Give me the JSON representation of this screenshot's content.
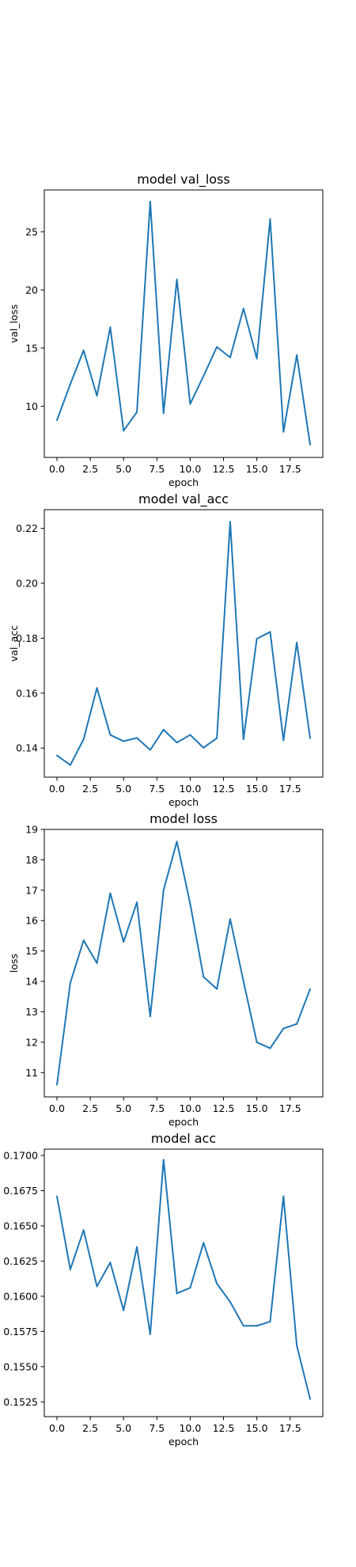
{
  "chart_data": [
    {
      "type": "line",
      "title": "model val_loss",
      "xlabel": "epoch",
      "ylabel": "val_loss",
      "xlim": [
        -0.95,
        19.95
      ],
      "ylim": [
        5.6,
        28.6
      ],
      "xticks": [
        0.0,
        2.5,
        5.0,
        7.5,
        10.0,
        12.5,
        15.0,
        17.5
      ],
      "xtick_labels": [
        "0.0",
        "2.5",
        "5.0",
        "7.5",
        "10.0",
        "12.5",
        "15.0",
        "17.5"
      ],
      "yticks": [
        10,
        15,
        20,
        25
      ],
      "ytick_labels": [
        "10",
        "15",
        "20",
        "25"
      ],
      "grid": false,
      "series": [
        {
          "color": "#1f77b4",
          "x": [
            0,
            1,
            2,
            3,
            4,
            5,
            6,
            7,
            8,
            9,
            10,
            11,
            12,
            13,
            14,
            15,
            16,
            17,
            18,
            19
          ],
          "y": [
            8.8,
            11.9,
            14.8,
            10.9,
            16.8,
            7.9,
            9.5,
            27.6,
            9.4,
            20.9,
            10.2,
            12.6,
            15.1,
            14.2,
            18.4,
            14.1,
            26.1,
            7.8,
            14.4,
            6.7
          ]
        }
      ]
    },
    {
      "type": "line",
      "title": "model val_acc",
      "xlabel": "epoch",
      "ylabel": "val_acc",
      "xlim": [
        -0.95,
        19.95
      ],
      "ylim": [
        0.1294,
        0.2268
      ],
      "xticks": [
        0.0,
        2.5,
        5.0,
        7.5,
        10.0,
        12.5,
        15.0,
        17.5
      ],
      "xtick_labels": [
        "0.0",
        "2.5",
        "5.0",
        "7.5",
        "10.0",
        "12.5",
        "15.0",
        "17.5"
      ],
      "yticks": [
        0.14,
        0.16,
        0.18,
        0.2,
        0.22
      ],
      "ytick_labels": [
        "0.14",
        "0.16",
        "0.18",
        "0.20",
        "0.22"
      ],
      "grid": false,
      "series": [
        {
          "color": "#1f77b4",
          "x": [
            0,
            1,
            2,
            3,
            4,
            5,
            6,
            7,
            8,
            9,
            10,
            11,
            12,
            13,
            14,
            15,
            16,
            17,
            18,
            19
          ],
          "y": [
            0.1373,
            0.1338,
            0.1432,
            0.1619,
            0.1448,
            0.1425,
            0.1437,
            0.1393,
            0.1467,
            0.142,
            0.1448,
            0.1401,
            0.1436,
            0.2224,
            0.1432,
            0.1798,
            0.1823,
            0.1428,
            0.1784,
            0.1436
          ]
        }
      ]
    },
    {
      "type": "line",
      "title": "model loss",
      "xlabel": "epoch",
      "ylabel": "loss",
      "xlim": [
        -0.95,
        19.95
      ],
      "ylim": [
        10.2,
        19.0
      ],
      "xticks": [
        0.0,
        2.5,
        5.0,
        7.5,
        10.0,
        12.5,
        15.0,
        17.5
      ],
      "xtick_labels": [
        "0.0",
        "2.5",
        "5.0",
        "7.5",
        "10.0",
        "12.5",
        "15.0",
        "17.5"
      ],
      "yticks": [
        11,
        12,
        13,
        14,
        15,
        16,
        17,
        18,
        19
      ],
      "ytick_labels": [
        "11",
        "12",
        "13",
        "14",
        "15",
        "16",
        "17",
        "18",
        "19"
      ],
      "grid": false,
      "series": [
        {
          "color": "#1f77b4",
          "x": [
            0,
            1,
            2,
            3,
            4,
            5,
            6,
            7,
            8,
            9,
            10,
            11,
            12,
            13,
            14,
            15,
            16,
            17,
            18,
            19
          ],
          "y": [
            10.6,
            13.95,
            15.35,
            14.6,
            16.9,
            15.3,
            16.6,
            12.85,
            17.0,
            18.6,
            16.55,
            14.15,
            13.75,
            16.05,
            14.0,
            12.0,
            11.8,
            12.45,
            12.6,
            13.75
          ]
        }
      ]
    },
    {
      "type": "line",
      "title": "model acc",
      "xlabel": "epoch",
      "ylabel": "",
      "xlim": [
        -0.95,
        19.95
      ],
      "ylim": [
        0.15145,
        0.17045
      ],
      "xticks": [
        0.0,
        2.5,
        5.0,
        7.5,
        10.0,
        12.5,
        15.0,
        17.5
      ],
      "xtick_labels": [
        "0.0",
        "2.5",
        "5.0",
        "7.5",
        "10.0",
        "12.5",
        "15.0",
        "17.5"
      ],
      "yticks": [
        0.1525,
        0.155,
        0.1575,
        0.16,
        0.1625,
        0.165,
        0.1675,
        0.17
      ],
      "ytick_labels": [
        "0.1525",
        "0.1550",
        "0.1575",
        "0.1600",
        "0.1625",
        "0.1650",
        "0.1675",
        "0.1700"
      ],
      "grid": false,
      "series": [
        {
          "color": "#1f77b4",
          "x": [
            0,
            1,
            2,
            3,
            4,
            5,
            6,
            7,
            8,
            9,
            10,
            11,
            12,
            13,
            14,
            15,
            16,
            17,
            18,
            19
          ],
          "y": [
            0.1671,
            0.1619,
            0.1647,
            0.1607,
            0.1624,
            0.159,
            0.1635,
            0.1573,
            0.1697,
            0.1602,
            0.1606,
            0.1638,
            0.1609,
            0.1596,
            0.1579,
            0.1579,
            0.1582,
            0.1671,
            0.1565,
            0.1527
          ]
        }
      ]
    }
  ]
}
